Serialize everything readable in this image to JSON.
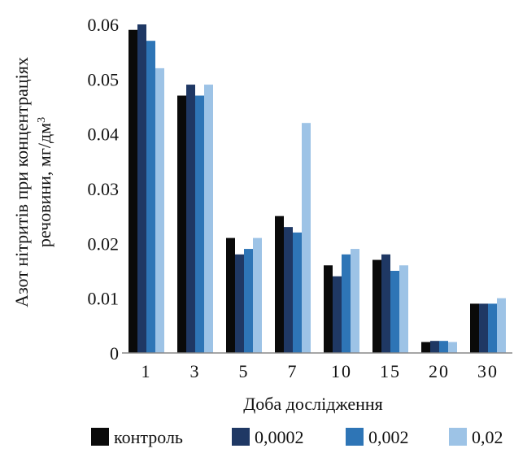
{
  "chart_data": {
    "type": "bar",
    "xlabel": "Доба дослідження",
    "ylabel_line1": "Азот нітритів при концентраціях",
    "ylabel_line2": "речовини, мг/дм",
    "ylabel_superscript": "3",
    "categories": [
      "1",
      "3",
      "5",
      "7",
      "10",
      "15",
      "20",
      "30"
    ],
    "ylim": [
      0,
      0.06
    ],
    "yticks": [
      "0",
      "0.01",
      "0.02",
      "0.03",
      "0.04",
      "0.05",
      "0.06"
    ],
    "grid": false,
    "legend_position": "bottom",
    "series": [
      {
        "name": "контроль",
        "color": "#0a0a0a",
        "values": [
          0.059,
          0.047,
          0.021,
          0.025,
          0.016,
          0.017,
          0.002,
          0.009
        ]
      },
      {
        "name": "0,0002",
        "color": "#1f3864",
        "values": [
          0.06,
          0.049,
          0.018,
          0.023,
          0.014,
          0.018,
          0.0022,
          0.009
        ]
      },
      {
        "name": "0,002",
        "color": "#2e75b6",
        "values": [
          0.057,
          0.047,
          0.019,
          0.022,
          0.018,
          0.015,
          0.0022,
          0.009
        ]
      },
      {
        "name": "0,02",
        "color": "#9dc3e6",
        "values": [
          0.052,
          0.049,
          0.021,
          0.042,
          0.019,
          0.016,
          0.002,
          0.01
        ]
      }
    ]
  }
}
